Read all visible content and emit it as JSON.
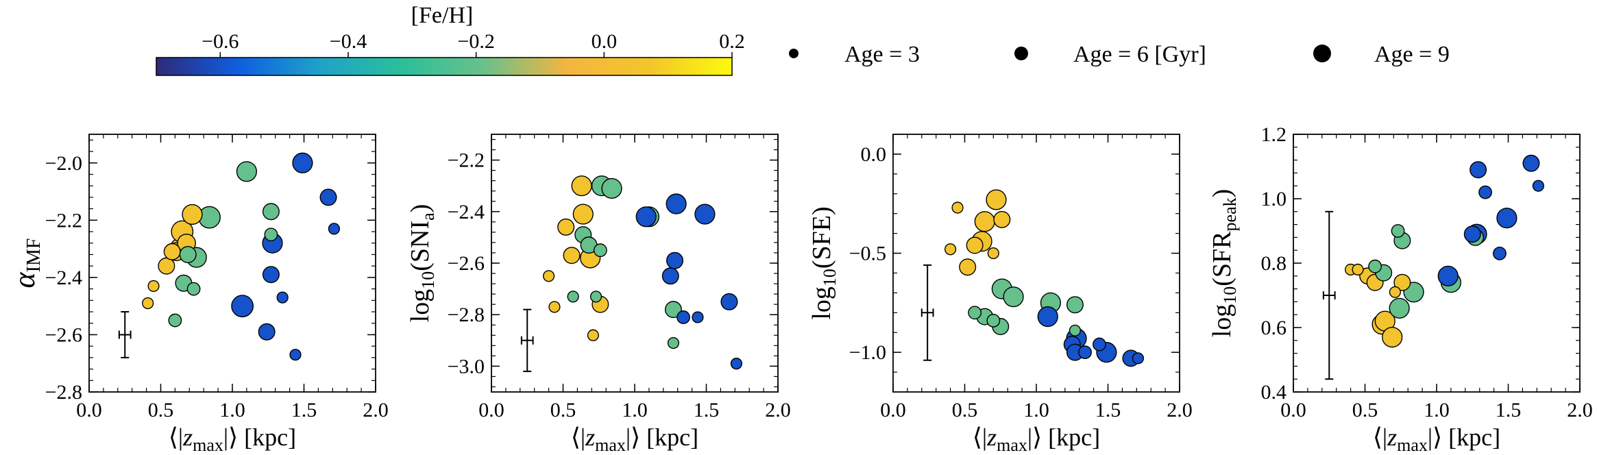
{
  "colorbar": {
    "label": "[Fe/H]",
    "ticks": [
      "−0.6",
      "−0.4",
      "−0.2",
      "0.0",
      "0.2"
    ],
    "tick_values": [
      -0.6,
      -0.4,
      -0.2,
      0.0,
      0.2
    ],
    "range": [
      -0.7,
      0.2
    ],
    "colors": [
      "#2e2a78",
      "#0f5ee0",
      "#1fa3c8",
      "#2bbf9a",
      "#6cc08a",
      "#f5b540",
      "#f2c62a",
      "#fbfa0e"
    ]
  },
  "size_legend": {
    "items": [
      {
        "label": "Age = 3",
        "age": 3
      },
      {
        "label": "Age = 6 [Gyr]",
        "age": 6
      },
      {
        "label": "Age = 9",
        "age": 9
      }
    ]
  },
  "chart_data": [
    {
      "type": "scatter",
      "title": "",
      "xlabel": "⟨|z_max|⟩ [kpc]",
      "ylabel": "α_IMF",
      "xlim": [
        0.0,
        2.0
      ],
      "ylim": [
        -2.8,
        -1.9
      ],
      "xticks": [
        0.0,
        0.5,
        1.0,
        1.5,
        2.0
      ],
      "xtick_labels": [
        "0.0",
        "0.5",
        "1.0",
        "1.5",
        "2.0"
      ],
      "yticks": [
        -2.8,
        -2.6,
        -2.4,
        -2.2,
        -2.0
      ],
      "ytick_labels": [
        "−2.8",
        "−2.6",
        "−2.4",
        "−2.2",
        "−2.0"
      ],
      "errorbar": {
        "x": 0.25,
        "y": -2.6,
        "xerr": 0.04,
        "yerr": 0.08
      },
      "points": [
        {
          "x": 0.41,
          "y": -2.49,
          "feh": 0.05,
          "age": 3
        },
        {
          "x": 0.45,
          "y": -2.43,
          "feh": 0.05,
          "age": 3
        },
        {
          "x": 0.54,
          "y": -2.36,
          "feh": 0.05,
          "age": 6
        },
        {
          "x": 0.58,
          "y": -2.31,
          "feh": 0.05,
          "age": 6
        },
        {
          "x": 0.61,
          "y": -2.31,
          "feh": 0.05,
          "age": 7
        },
        {
          "x": 0.64,
          "y": -2.3,
          "feh": 0.05,
          "age": 9
        },
        {
          "x": 0.68,
          "y": -2.28,
          "feh": 0.05,
          "age": 7
        },
        {
          "x": 0.65,
          "y": -2.24,
          "feh": 0.05,
          "age": 9
        },
        {
          "x": 0.72,
          "y": -2.18,
          "feh": 0.05,
          "age": 8
        },
        {
          "x": 0.69,
          "y": -2.32,
          "feh": -0.2,
          "age": 6
        },
        {
          "x": 0.75,
          "y": -2.33,
          "feh": -0.2,
          "age": 8
        },
        {
          "x": 0.84,
          "y": -2.19,
          "feh": -0.2,
          "age": 9
        },
        {
          "x": 0.66,
          "y": -2.42,
          "feh": -0.2,
          "age": 6
        },
        {
          "x": 0.73,
          "y": -2.44,
          "feh": -0.2,
          "age": 4
        },
        {
          "x": 0.6,
          "y": -2.55,
          "feh": -0.2,
          "age": 4
        },
        {
          "x": 1.1,
          "y": -2.03,
          "feh": -0.2,
          "age": 8
        },
        {
          "x": 1.27,
          "y": -2.17,
          "feh": -0.2,
          "age": 6
        },
        {
          "x": 1.27,
          "y": -2.25,
          "feh": -0.2,
          "age": 4
        },
        {
          "x": 1.28,
          "y": -2.28,
          "feh": -0.6,
          "age": 8
        },
        {
          "x": 1.27,
          "y": -2.39,
          "feh": -0.6,
          "age": 6
        },
        {
          "x": 1.07,
          "y": -2.5,
          "feh": -0.6,
          "age": 9
        },
        {
          "x": 1.24,
          "y": -2.59,
          "feh": -0.6,
          "age": 6
        },
        {
          "x": 1.35,
          "y": -2.47,
          "feh": -0.6,
          "age": 3
        },
        {
          "x": 1.44,
          "y": -2.67,
          "feh": -0.6,
          "age": 3
        },
        {
          "x": 1.49,
          "y": -2.0,
          "feh": -0.6,
          "age": 8
        },
        {
          "x": 1.67,
          "y": -2.12,
          "feh": -0.6,
          "age": 6
        },
        {
          "x": 1.71,
          "y": -2.23,
          "feh": -0.6,
          "age": 3
        }
      ]
    },
    {
      "type": "scatter",
      "title": "",
      "xlabel": "⟨|z_max|⟩ [kpc]",
      "ylabel": "log₁₀(SNI_a)",
      "xlim": [
        0.0,
        2.0
      ],
      "ylim": [
        -3.1,
        -2.1
      ],
      "xticks": [
        0.0,
        0.5,
        1.0,
        1.5,
        2.0
      ],
      "xtick_labels": [
        "0.0",
        "0.5",
        "1.0",
        "1.5",
        "2.0"
      ],
      "yticks": [
        -3.0,
        -2.8,
        -2.6,
        -2.4,
        -2.2
      ],
      "ytick_labels": [
        "−3.0",
        "−2.8",
        "−2.6",
        "−2.4",
        "−2.2"
      ],
      "errorbar": {
        "x": 0.25,
        "y": -2.9,
        "xerr": 0.04,
        "yerr": 0.12
      },
      "points": [
        {
          "x": 0.4,
          "y": -2.65,
          "feh": 0.05,
          "age": 3
        },
        {
          "x": 0.44,
          "y": -2.77,
          "feh": 0.05,
          "age": 3
        },
        {
          "x": 0.52,
          "y": -2.46,
          "feh": 0.05,
          "age": 6
        },
        {
          "x": 0.56,
          "y": -2.57,
          "feh": 0.05,
          "age": 6
        },
        {
          "x": 0.63,
          "y": -2.3,
          "feh": 0.05,
          "age": 8
        },
        {
          "x": 0.64,
          "y": -2.41,
          "feh": 0.05,
          "age": 8
        },
        {
          "x": 0.69,
          "y": -2.58,
          "feh": 0.05,
          "age": 8
        },
        {
          "x": 0.71,
          "y": -2.88,
          "feh": 0.05,
          "age": 3
        },
        {
          "x": 0.76,
          "y": -2.76,
          "feh": 0.05,
          "age": 6
        },
        {
          "x": 0.57,
          "y": -2.73,
          "feh": -0.2,
          "age": 3
        },
        {
          "x": 0.64,
          "y": -2.49,
          "feh": -0.2,
          "age": 6
        },
        {
          "x": 0.68,
          "y": -2.53,
          "feh": -0.2,
          "age": 6
        },
        {
          "x": 0.73,
          "y": -2.73,
          "feh": -0.2,
          "age": 3
        },
        {
          "x": 0.76,
          "y": -2.55,
          "feh": -0.2,
          "age": 4
        },
        {
          "x": 0.77,
          "y": -2.3,
          "feh": -0.2,
          "age": 8
        },
        {
          "x": 0.84,
          "y": -2.31,
          "feh": -0.2,
          "age": 8
        },
        {
          "x": 1.1,
          "y": -2.42,
          "feh": -0.2,
          "age": 8
        },
        {
          "x": 1.27,
          "y": -2.78,
          "feh": -0.2,
          "age": 6
        },
        {
          "x": 1.27,
          "y": -2.91,
          "feh": -0.2,
          "age": 3
        },
        {
          "x": 1.08,
          "y": -2.42,
          "feh": -0.6,
          "age": 8
        },
        {
          "x": 1.25,
          "y": -2.65,
          "feh": -0.6,
          "age": 6
        },
        {
          "x": 1.29,
          "y": -2.37,
          "feh": -0.6,
          "age": 8
        },
        {
          "x": 1.28,
          "y": -2.59,
          "feh": -0.6,
          "age": 6
        },
        {
          "x": 1.34,
          "y": -2.81,
          "feh": -0.6,
          "age": 4
        },
        {
          "x": 1.44,
          "y": -2.81,
          "feh": -0.6,
          "age": 3
        },
        {
          "x": 1.49,
          "y": -2.41,
          "feh": -0.6,
          "age": 8
        },
        {
          "x": 1.66,
          "y": -2.75,
          "feh": -0.6,
          "age": 6
        },
        {
          "x": 1.71,
          "y": -2.99,
          "feh": -0.6,
          "age": 3
        }
      ]
    },
    {
      "type": "scatter",
      "title": "",
      "xlabel": "⟨|z_max|⟩ [kpc]",
      "ylabel": "log₁₀(SFE)",
      "xlim": [
        0.0,
        2.0
      ],
      "ylim": [
        -1.2,
        0.1
      ],
      "xticks": [
        0.0,
        0.5,
        1.0,
        1.5,
        2.0
      ],
      "xtick_labels": [
        "0.0",
        "0.5",
        "1.0",
        "1.5",
        "2.0"
      ],
      "yticks": [
        -1.0,
        -0.5,
        0.0
      ],
      "ytick_labels": [
        "−1.0",
        "−0.5",
        "0.0"
      ],
      "errorbar": {
        "x": 0.24,
        "y": -0.8,
        "xerr": 0.04,
        "yerr": 0.24
      },
      "points": [
        {
          "x": 0.4,
          "y": -0.48,
          "feh": 0.05,
          "age": 3
        },
        {
          "x": 0.45,
          "y": -0.27,
          "feh": 0.05,
          "age": 3
        },
        {
          "x": 0.52,
          "y": -0.57,
          "feh": 0.05,
          "age": 6
        },
        {
          "x": 0.57,
          "y": -0.46,
          "feh": 0.05,
          "age": 6
        },
        {
          "x": 0.62,
          "y": -0.44,
          "feh": 0.05,
          "age": 8
        },
        {
          "x": 0.64,
          "y": -0.34,
          "feh": 0.05,
          "age": 8
        },
        {
          "x": 0.7,
          "y": -0.5,
          "feh": 0.05,
          "age": 3
        },
        {
          "x": 0.72,
          "y": -0.23,
          "feh": 0.05,
          "age": 8
        },
        {
          "x": 0.76,
          "y": -0.33,
          "feh": 0.05,
          "age": 6
        },
        {
          "x": 0.57,
          "y": -0.8,
          "feh": -0.2,
          "age": 4
        },
        {
          "x": 0.64,
          "y": -0.82,
          "feh": -0.2,
          "age": 6
        },
        {
          "x": 0.7,
          "y": -0.84,
          "feh": -0.2,
          "age": 4
        },
        {
          "x": 0.75,
          "y": -0.87,
          "feh": -0.2,
          "age": 6
        },
        {
          "x": 0.76,
          "y": -0.68,
          "feh": -0.2,
          "age": 8
        },
        {
          "x": 0.84,
          "y": -0.72,
          "feh": -0.2,
          "age": 8
        },
        {
          "x": 1.1,
          "y": -0.75,
          "feh": -0.2,
          "age": 8
        },
        {
          "x": 1.27,
          "y": -0.76,
          "feh": -0.2,
          "age": 6
        },
        {
          "x": 1.27,
          "y": -0.89,
          "feh": -0.2,
          "age": 3
        },
        {
          "x": 1.08,
          "y": -0.82,
          "feh": -0.6,
          "age": 8
        },
        {
          "x": 1.25,
          "y": -0.96,
          "feh": -0.6,
          "age": 6
        },
        {
          "x": 1.28,
          "y": -0.93,
          "feh": -0.6,
          "age": 8
        },
        {
          "x": 1.27,
          "y": -1.0,
          "feh": -0.6,
          "age": 6
        },
        {
          "x": 1.34,
          "y": -1.0,
          "feh": -0.6,
          "age": 4
        },
        {
          "x": 1.44,
          "y": -0.96,
          "feh": -0.6,
          "age": 4
        },
        {
          "x": 1.49,
          "y": -1.0,
          "feh": -0.6,
          "age": 8
        },
        {
          "x": 1.66,
          "y": -1.03,
          "feh": -0.6,
          "age": 6
        },
        {
          "x": 1.71,
          "y": -1.03,
          "feh": -0.6,
          "age": 3
        }
      ]
    },
    {
      "type": "scatter",
      "title": "",
      "xlabel": "⟨|z_max|⟩ [kpc]",
      "ylabel": "log₁₀(SFR_peak)",
      "xlim": [
        0.0,
        2.0
      ],
      "ylim": [
        0.4,
        1.2
      ],
      "xticks": [
        0.0,
        0.5,
        1.0,
        1.5,
        2.0
      ],
      "xtick_labels": [
        "0.0",
        "0.5",
        "1.0",
        "1.5",
        "2.0"
      ],
      "yticks": [
        0.4,
        0.6,
        0.8,
        1.0,
        1.2
      ],
      "ytick_labels": [
        "0.4",
        "0.6",
        "0.8",
        "1.0",
        "1.2"
      ],
      "errorbar": {
        "x": 0.25,
        "y": 0.7,
        "xerr": 0.04,
        "yerr": 0.26
      },
      "points": [
        {
          "x": 0.4,
          "y": 0.78,
          "feh": 0.05,
          "age": 3
        },
        {
          "x": 0.45,
          "y": 0.78,
          "feh": 0.05,
          "age": 3
        },
        {
          "x": 0.52,
          "y": 0.76,
          "feh": 0.05,
          "age": 6
        },
        {
          "x": 0.57,
          "y": 0.74,
          "feh": 0.05,
          "age": 6
        },
        {
          "x": 0.62,
          "y": 0.61,
          "feh": 0.05,
          "age": 8
        },
        {
          "x": 0.64,
          "y": 0.62,
          "feh": 0.05,
          "age": 8
        },
        {
          "x": 0.69,
          "y": 0.57,
          "feh": 0.05,
          "age": 8
        },
        {
          "x": 0.71,
          "y": 0.71,
          "feh": 0.05,
          "age": 3
        },
        {
          "x": 0.76,
          "y": 0.74,
          "feh": 0.05,
          "age": 6
        },
        {
          "x": 0.57,
          "y": 0.79,
          "feh": -0.2,
          "age": 4
        },
        {
          "x": 0.63,
          "y": 0.77,
          "feh": -0.2,
          "age": 6
        },
        {
          "x": 0.73,
          "y": 0.9,
          "feh": -0.2,
          "age": 4
        },
        {
          "x": 0.76,
          "y": 0.87,
          "feh": -0.2,
          "age": 6
        },
        {
          "x": 0.74,
          "y": 0.66,
          "feh": -0.2,
          "age": 8
        },
        {
          "x": 0.84,
          "y": 0.71,
          "feh": -0.2,
          "age": 8
        },
        {
          "x": 1.1,
          "y": 0.74,
          "feh": -0.2,
          "age": 8
        },
        {
          "x": 1.27,
          "y": 0.88,
          "feh": -0.2,
          "age": 6
        },
        {
          "x": 1.08,
          "y": 0.76,
          "feh": -0.6,
          "age": 8
        },
        {
          "x": 1.25,
          "y": 0.89,
          "feh": -0.6,
          "age": 6
        },
        {
          "x": 1.28,
          "y": 0.89,
          "feh": -0.6,
          "age": 8
        },
        {
          "x": 1.29,
          "y": 1.09,
          "feh": -0.6,
          "age": 6
        },
        {
          "x": 1.34,
          "y": 1.02,
          "feh": -0.6,
          "age": 4
        },
        {
          "x": 1.44,
          "y": 0.83,
          "feh": -0.6,
          "age": 4
        },
        {
          "x": 1.49,
          "y": 0.94,
          "feh": -0.6,
          "age": 8
        },
        {
          "x": 1.66,
          "y": 1.11,
          "feh": -0.6,
          "age": 6
        },
        {
          "x": 1.71,
          "y": 1.04,
          "feh": -0.6,
          "age": 3
        }
      ]
    }
  ]
}
